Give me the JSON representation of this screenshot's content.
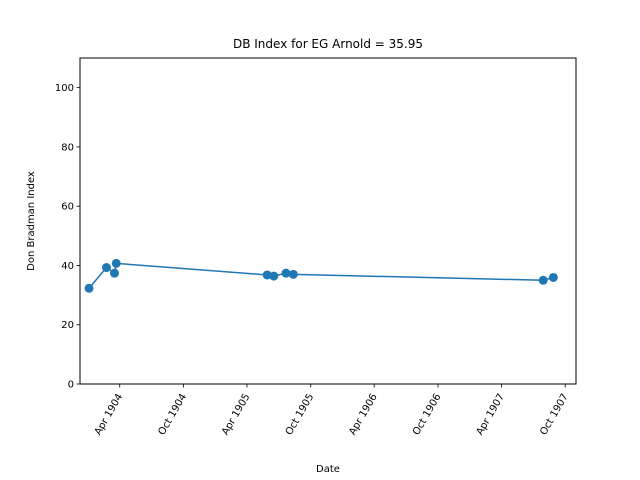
{
  "chart_data": {
    "type": "line",
    "title": "DB Index for EG Arnold = 35.95",
    "xlabel": "Date",
    "ylabel": "Don Bradman Index",
    "ylim": [
      0,
      110
    ],
    "xlim": [
      "1903-12-09",
      "1907-11-01"
    ],
    "yticks": [
      0,
      20,
      40,
      60,
      80,
      100
    ],
    "xticks": [
      {
        "date": "1904-04-01",
        "label": "Apr 1904"
      },
      {
        "date": "1904-10-01",
        "label": "Oct 1904"
      },
      {
        "date": "1905-04-01",
        "label": "Apr 1905"
      },
      {
        "date": "1905-10-01",
        "label": "Oct 1905"
      },
      {
        "date": "1906-04-01",
        "label": "Apr 1906"
      },
      {
        "date": "1906-10-01",
        "label": "Oct 1906"
      },
      {
        "date": "1907-04-01",
        "label": "Apr 1907"
      },
      {
        "date": "1907-10-01",
        "label": "Oct 1907"
      }
    ],
    "grid": false,
    "series": [
      {
        "color": "#1f77b4",
        "marker": "circle",
        "points": [
          {
            "x": "1904-01-04",
            "y": 32.3
          },
          {
            "x": "1904-02-23",
            "y": 39.3
          },
          {
            "x": "1904-03-17",
            "y": 37.4
          },
          {
            "x": "1904-03-22",
            "y": 40.7
          },
          {
            "x": "1905-05-29",
            "y": 36.8
          },
          {
            "x": "1905-06-17",
            "y": 36.4
          },
          {
            "x": "1905-07-22",
            "y": 37.4
          },
          {
            "x": "1905-08-12",
            "y": 37.0
          },
          {
            "x": "1907-07-30",
            "y": 35.0
          },
          {
            "x": "1907-08-28",
            "y": 35.95
          }
        ]
      }
    ]
  }
}
